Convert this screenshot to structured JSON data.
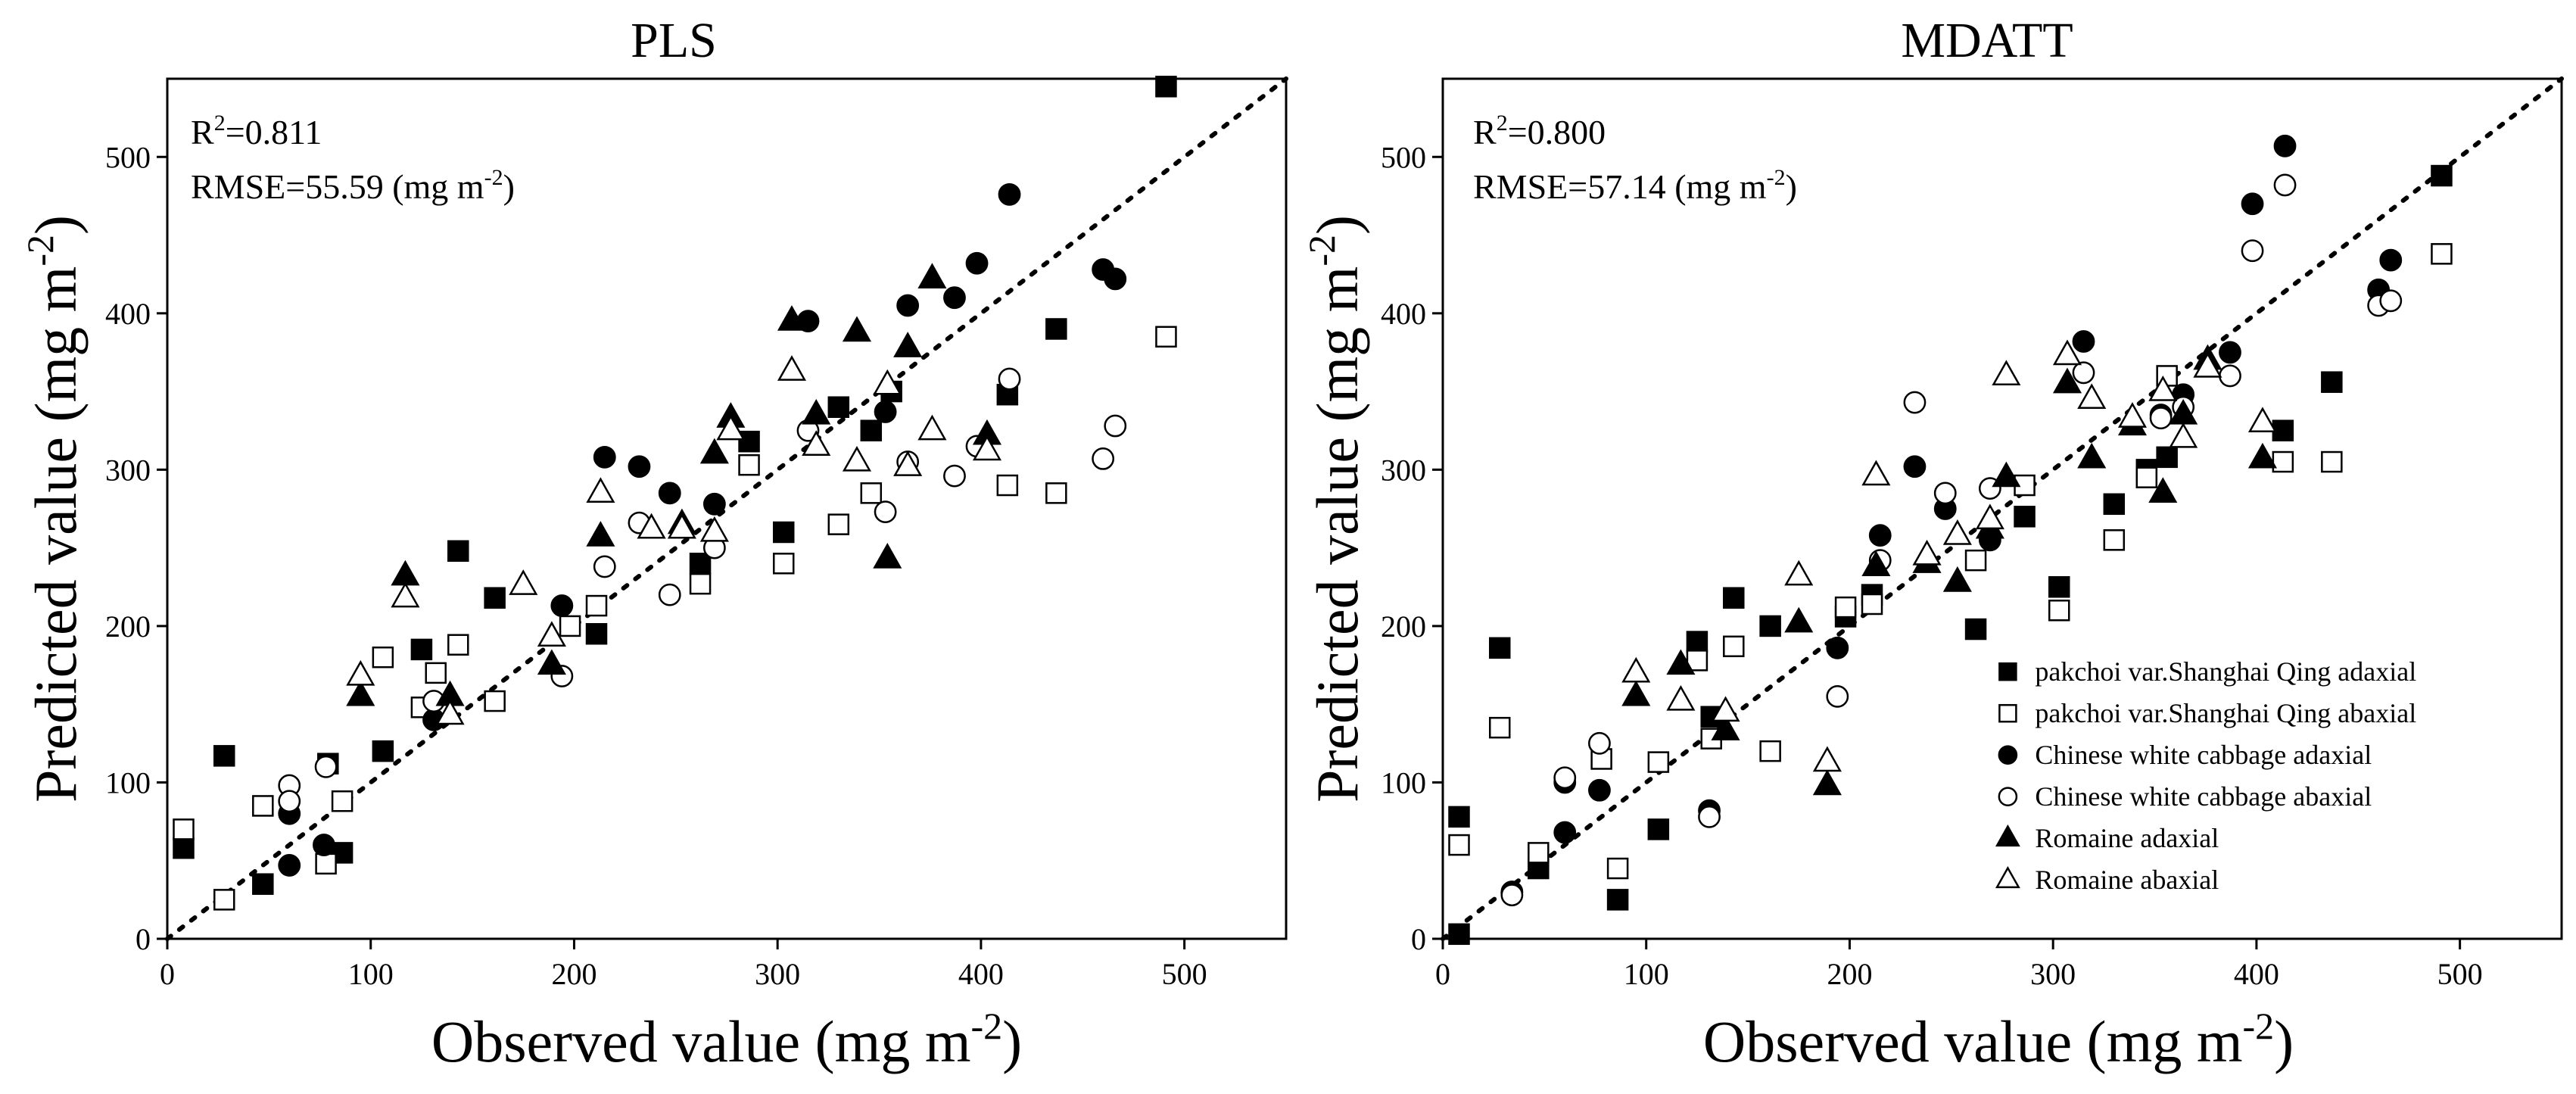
{
  "chart_data": [
    {
      "type": "scatter",
      "title": "PLS",
      "xlabel": "Observed value (mg m",
      "xlabel_sup": "-2",
      "xlabel_end": ")",
      "ylabel": "Predicted value (mg m",
      "ylabel_sup": "-2",
      "ylabel_end": ")",
      "xlim": [
        0,
        550
      ],
      "ylim": [
        0,
        550
      ],
      "xticks": [
        0,
        100,
        200,
        300,
        400,
        500
      ],
      "yticks": [
        0,
        100,
        200,
        300,
        400,
        500
      ],
      "x_tick_labels": [
        "0",
        "100",
        "200",
        "300",
        "400",
        "500"
      ],
      "y_tick_labels": [
        "0",
        "100",
        "200",
        "300",
        "400",
        "500"
      ],
      "reference_line": "1:1",
      "annotation_r2_prefix": "R",
      "annotation_r2_sup": "2",
      "annotation_r2_value": "=0.811",
      "annotation_rmse": "RMSE=55.59 (mg m",
      "annotation_rmse_sup": "-2",
      "annotation_rmse_end": ")",
      "series": [
        {
          "name": "pakchoi var.Shanghai Qing adaxial",
          "marker": "square-filled",
          "points": [
            [
              491,
              545
            ],
            [
              8,
              58
            ],
            [
              28,
              117
            ],
            [
              47,
              35
            ],
            [
              79,
              112
            ],
            [
              86,
              55
            ],
            [
              106,
              120
            ],
            [
              125,
              185
            ],
            [
              143,
              248
            ],
            [
              161,
              218
            ],
            [
              211,
              195
            ],
            [
              262,
              240
            ],
            [
              286,
              318
            ],
            [
              303,
              260
            ],
            [
              330,
              340
            ],
            [
              346,
              325
            ],
            [
              356,
              350
            ],
            [
              413,
              348
            ],
            [
              437,
              390
            ]
          ]
        },
        {
          "name": "pakchoi var.Shanghai Qing abaxial",
          "marker": "square-open",
          "points": [
            [
              8,
              70
            ],
            [
              28,
              25
            ],
            [
              47,
              85
            ],
            [
              78,
              48
            ],
            [
              86,
              88
            ],
            [
              106,
              180
            ],
            [
              125,
              148
            ],
            [
              132,
              170
            ],
            [
              143,
              188
            ],
            [
              161,
              152
            ],
            [
              198,
              200
            ],
            [
              211,
              213
            ],
            [
              262,
              227
            ],
            [
              286,
              303
            ],
            [
              303,
              240
            ],
            [
              330,
              265
            ],
            [
              346,
              285
            ],
            [
              413,
              290
            ],
            [
              437,
              285
            ],
            [
              491,
              385
            ]
          ]
        },
        {
          "name": "Chinese white cabbage adaxial",
          "marker": "circle-filled",
          "points": [
            [
              60,
              47
            ],
            [
              60,
              80
            ],
            [
              77,
              60
            ],
            [
              131,
              140
            ],
            [
              194,
              213
            ],
            [
              215,
              308
            ],
            [
              232,
              302
            ],
            [
              247,
              285
            ],
            [
              269,
              278
            ],
            [
              315,
              395
            ],
            [
              353,
              337
            ],
            [
              364,
              405
            ],
            [
              387,
              410
            ],
            [
              398,
              432
            ],
            [
              414,
              476
            ],
            [
              460,
              428
            ],
            [
              466,
              422
            ]
          ]
        },
        {
          "name": "Chinese white cabbage abaxial",
          "marker": "circle-open",
          "points": [
            [
              60,
              98
            ],
            [
              60,
              88
            ],
            [
              78,
              110
            ],
            [
              131,
              152
            ],
            [
              194,
              168
            ],
            [
              215,
              238
            ],
            [
              232,
              266
            ],
            [
              247,
              220
            ],
            [
              269,
              250
            ],
            [
              315,
              325
            ],
            [
              353,
              273
            ],
            [
              364,
              305
            ],
            [
              387,
              296
            ],
            [
              398,
              315
            ],
            [
              414,
              358
            ],
            [
              460,
              307
            ],
            [
              466,
              328
            ]
          ]
        },
        {
          "name": "Romaine adaxial",
          "marker": "triangle-filled",
          "points": [
            [
              95,
              155
            ],
            [
              117,
              232
            ],
            [
              139,
              155
            ],
            [
              189,
              175
            ],
            [
              213,
              257
            ],
            [
              238,
              262
            ],
            [
              253,
              265
            ],
            [
              269,
              310
            ],
            [
              277,
              333
            ],
            [
              307,
              395
            ],
            [
              319,
              335
            ],
            [
              339,
              388
            ],
            [
              354,
              243
            ],
            [
              364,
              378
            ],
            [
              376,
              422
            ],
            [
              403,
              322
            ]
          ]
        },
        {
          "name": "Romaine abaxial",
          "marker": "triangle-open",
          "points": [
            [
              95,
              168
            ],
            [
              117,
              218
            ],
            [
              139,
              143
            ],
            [
              175,
              226
            ],
            [
              189,
              193
            ],
            [
              213,
              285
            ],
            [
              238,
              262
            ],
            [
              253,
              262
            ],
            [
              269,
              260
            ],
            [
              277,
              325
            ],
            [
              307,
              363
            ],
            [
              319,
              315
            ],
            [
              339,
              305
            ],
            [
              354,
              354
            ],
            [
              364,
              302
            ],
            [
              376,
              325
            ],
            [
              403,
              312
            ]
          ]
        }
      ]
    },
    {
      "type": "scatter",
      "title": "MDATT",
      "xlabel": "Observed  value (mg m",
      "xlabel_sup": "-2",
      "xlabel_end": ")",
      "ylabel": "Predicted value (mg m",
      "ylabel_sup": "-2",
      "ylabel_end": ")",
      "xlim": [
        0,
        550
      ],
      "ylim": [
        0,
        550
      ],
      "xticks": [
        0,
        100,
        200,
        300,
        400,
        500
      ],
      "yticks": [
        0,
        100,
        200,
        300,
        400,
        500
      ],
      "x_tick_labels": [
        "0",
        "100",
        "200",
        "300",
        "400",
        "500"
      ],
      "y_tick_labels": [
        "0",
        "100",
        "200",
        "300",
        "400",
        "500"
      ],
      "reference_line": "1:1",
      "legend_position": "bottom-right",
      "annotation_r2_prefix": "R",
      "annotation_r2_sup": "2",
      "annotation_r2_value": "=0.800",
      "annotation_rmse": "RMSE=57.14 (mg m",
      "annotation_rmse_sup": "-2",
      "annotation_rmse_end": ")",
      "series": [
        {
          "name": "pakchoi var.Shanghai Qing adaxial",
          "marker": "square-filled",
          "points": [
            [
              8,
              78
            ],
            [
              8,
              3
            ],
            [
              28,
              186
            ],
            [
              47,
              45
            ],
            [
              86,
              25
            ],
            [
              106,
              70
            ],
            [
              125,
              190
            ],
            [
              132,
              142
            ],
            [
              143,
              218
            ],
            [
              161,
              200
            ],
            [
              198,
              206
            ],
            [
              211,
              220
            ],
            [
              262,
              198
            ],
            [
              286,
              270
            ],
            [
              303,
              225
            ],
            [
              330,
              278
            ],
            [
              346,
              300
            ],
            [
              356,
              308
            ],
            [
              413,
              325
            ],
            [
              437,
              356
            ],
            [
              491,
              488
            ]
          ]
        },
        {
          "name": "pakchoi var.Shanghai Qing abaxial",
          "marker": "square-open",
          "points": [
            [
              8,
              60
            ],
            [
              28,
              135
            ],
            [
              47,
              55
            ],
            [
              78,
              115
            ],
            [
              86,
              45
            ],
            [
              106,
              113
            ],
            [
              125,
              178
            ],
            [
              132,
              128
            ],
            [
              143,
              187
            ],
            [
              161,
              120
            ],
            [
              198,
              212
            ],
            [
              211,
              214
            ],
            [
              262,
              242
            ],
            [
              286,
              290
            ],
            [
              303,
              210
            ],
            [
              330,
              255
            ],
            [
              346,
              295
            ],
            [
              356,
              360
            ],
            [
              413,
              305
            ],
            [
              437,
              305
            ],
            [
              491,
              438
            ]
          ]
        },
        {
          "name": "Chinese white cabbage adaxial",
          "marker": "circle-filled",
          "points": [
            [
              34,
              30
            ],
            [
              60,
              68
            ],
            [
              60,
              100
            ],
            [
              77,
              95
            ],
            [
              131,
              82
            ],
            [
              194,
              186
            ],
            [
              215,
              258
            ],
            [
              232,
              302
            ],
            [
              247,
              275
            ],
            [
              269,
              255
            ],
            [
              315,
              382
            ],
            [
              353,
              335
            ],
            [
              364,
              348
            ],
            [
              387,
              375
            ],
            [
              398,
              470
            ],
            [
              414,
              507
            ],
            [
              460,
              415
            ],
            [
              466,
              434
            ]
          ]
        },
        {
          "name": "Chinese white cabbage abaxial",
          "marker": "circle-open",
          "points": [
            [
              34,
              28
            ],
            [
              60,
              103
            ],
            [
              77,
              125
            ],
            [
              131,
              78
            ],
            [
              194,
              155
            ],
            [
              215,
              242
            ],
            [
              232,
              343
            ],
            [
              247,
              285
            ],
            [
              269,
              288
            ],
            [
              315,
              362
            ],
            [
              353,
              333
            ],
            [
              364,
              340
            ],
            [
              387,
              360
            ],
            [
              398,
              440
            ],
            [
              414,
              482
            ],
            [
              460,
              405
            ],
            [
              466,
              408
            ]
          ]
        },
        {
          "name": "Romaine adaxial",
          "marker": "triangle-filled",
          "points": [
            [
              95,
              155
            ],
            [
              117,
              175
            ],
            [
              139,
              133
            ],
            [
              175,
              202
            ],
            [
              189,
              98
            ],
            [
              213,
              238
            ],
            [
              238,
              240
            ],
            [
              253,
              228
            ],
            [
              269,
              262
            ],
            [
              277,
              295
            ],
            [
              307,
              355
            ],
            [
              319,
              307
            ],
            [
              339,
              328
            ],
            [
              354,
              285
            ],
            [
              364,
              335
            ],
            [
              376,
              370
            ],
            [
              403,
              307
            ]
          ]
        },
        {
          "name": "Romaine abaxial",
          "marker": "triangle-open",
          "points": [
            [
              95,
              170
            ],
            [
              117,
              152
            ],
            [
              139,
              145
            ],
            [
              175,
              232
            ],
            [
              189,
              113
            ],
            [
              213,
              296
            ],
            [
              238,
              245
            ],
            [
              253,
              258
            ],
            [
              269,
              268
            ],
            [
              277,
              360
            ],
            [
              307,
              373
            ],
            [
              319,
              345
            ],
            [
              339,
              333
            ],
            [
              354,
              350
            ],
            [
              364,
              320
            ],
            [
              376,
              365
            ],
            [
              403,
              330
            ]
          ]
        }
      ]
    }
  ]
}
